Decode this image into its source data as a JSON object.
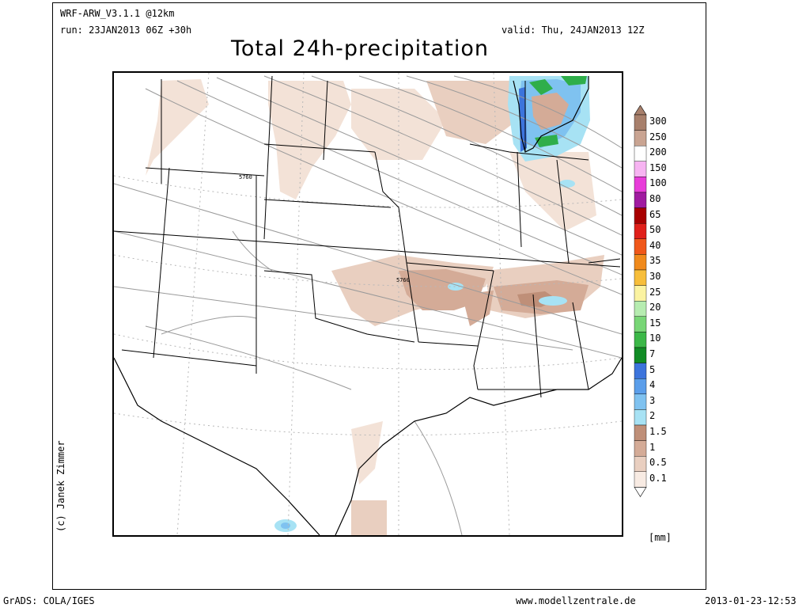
{
  "header": {
    "model": "WRF-ARW_V3.1.1 @12km",
    "run": "run: 23JAN2013 06Z +30h",
    "valid": "valid: Thu, 24JAN2013 12Z",
    "title": "Total 24h-precipitation"
  },
  "credit": "(c) Janek Zimmer",
  "map": {
    "contour_labels": [
      "5760",
      "5760"
    ],
    "colors": {
      "light": "#f3e2d7",
      "medium": "#dfb8a3",
      "dark": "#bf8f78",
      "ice": "#a7e2f4",
      "blue": "#4aa7e8",
      "green": "#2fae4a",
      "isoline": "#9a9a9a",
      "border": "#000000"
    }
  },
  "legend": {
    "unit": "[mm]",
    "items": [
      {
        "label": "300",
        "color": "#a8806c"
      },
      {
        "label": "250",
        "color": "#c9a492"
      },
      {
        "label": "200",
        "color": "#ffffff"
      },
      {
        "label": "150",
        "color": "#f7b4f2"
      },
      {
        "label": "100",
        "color": "#e83cd9"
      },
      {
        "label": "80",
        "color": "#a01ba0"
      },
      {
        "label": "65",
        "color": "#a80000"
      },
      {
        "label": "50",
        "color": "#e0201a"
      },
      {
        "label": "40",
        "color": "#f0581a"
      },
      {
        "label": "35",
        "color": "#f08a1c"
      },
      {
        "label": "30",
        "color": "#f7be3a"
      },
      {
        "label": "25",
        "color": "#fbf3a1"
      },
      {
        "label": "20",
        "color": "#b6ecb0"
      },
      {
        "label": "15",
        "color": "#78d676"
      },
      {
        "label": "10",
        "color": "#3cb848"
      },
      {
        "label": "7",
        "color": "#118c25"
      },
      {
        "label": "5",
        "color": "#3c74dc"
      },
      {
        "label": "4",
        "color": "#5b9eea"
      },
      {
        "label": "3",
        "color": "#7fc2f0"
      },
      {
        "label": "2",
        "color": "#a7e2f4"
      },
      {
        "label": "1.5",
        "color": "#bf8f78"
      },
      {
        "label": "1",
        "color": "#d4ab97"
      },
      {
        "label": "0.5",
        "color": "#e9cfc0"
      },
      {
        "label": "0.1",
        "color": "#f8ebe3"
      }
    ]
  },
  "footer": {
    "left": "GrADS: COLA/IGES",
    "center": "www.modellzentrale.de",
    "right": "2013-01-23-12:53"
  }
}
